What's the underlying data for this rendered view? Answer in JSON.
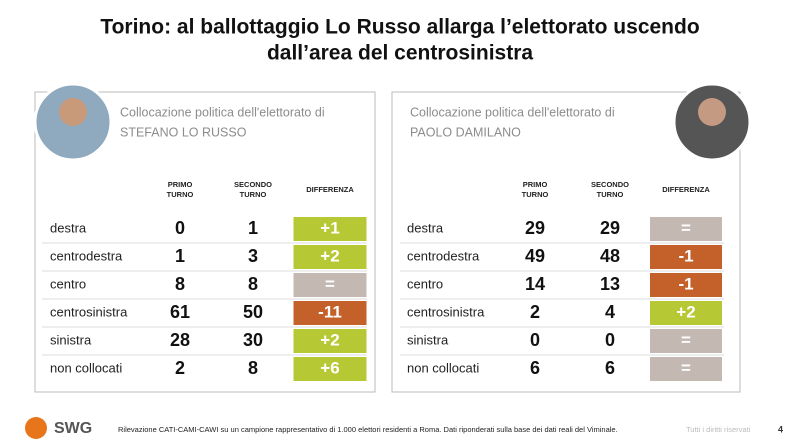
{
  "header": {
    "title_lines": [
      "Torino: al ballottaggio Lo Russo allarga l’elettorato uscendo",
      "dall’area del centrosinistra"
    ]
  },
  "tables": [
    {
      "caption_lines": [
        "Collocazione politica dell'elettorato di",
        "STEFANO LO RUSSO"
      ],
      "columns": [
        [
          "PRIMO",
          "TURNO"
        ],
        [
          "SECONDO",
          "TURNO"
        ],
        [
          "DIFFERENZA"
        ]
      ],
      "rows": [
        {
          "label": "destra",
          "primo": 0,
          "secondo": 1,
          "diff": "+1",
          "color": "#b6c934"
        },
        {
          "label": "centrodestra",
          "primo": 1,
          "secondo": 3,
          "diff": "+2",
          "color": "#b6c934"
        },
        {
          "label": "centro",
          "primo": 8,
          "secondo": 8,
          "diff": "=",
          "color": "#c3b8b2"
        },
        {
          "label": "centrosinistra",
          "primo": 61,
          "secondo": 50,
          "diff": "-11",
          "color": "#c4602a"
        },
        {
          "label": "sinistra",
          "primo": 28,
          "secondo": 30,
          "diff": "+2",
          "color": "#b6c934"
        },
        {
          "label": "non collocati",
          "primo": 2,
          "secondo": 8,
          "diff": "+6",
          "color": "#b6c934"
        }
      ]
    },
    {
      "caption_lines": [
        "Collocazione politica dell'elettorato di",
        "PAOLO DAMILANO"
      ],
      "columns": [
        [
          "PRIMO",
          "TURNO"
        ],
        [
          "SECONDO",
          "TURNO"
        ],
        [
          "DIFFERENZA"
        ]
      ],
      "rows": [
        {
          "label": "destra",
          "primo": 29,
          "secondo": 29,
          "diff": "=",
          "color": "#c3b8b2"
        },
        {
          "label": "centrodestra",
          "primo": 49,
          "secondo": 48,
          "diff": "-1",
          "color": "#c4602a"
        },
        {
          "label": "centro",
          "primo": 14,
          "secondo": 13,
          "diff": "-1",
          "color": "#c4602a"
        },
        {
          "label": "centrosinistra",
          "primo": 2,
          "secondo": 4,
          "diff": "+2",
          "color": "#b6c934"
        },
        {
          "label": "sinistra",
          "primo": 0,
          "secondo": 0,
          "diff": "=",
          "color": "#c3b8b2"
        },
        {
          "label": "non collocati",
          "primo": 6,
          "secondo": 6,
          "diff": "=",
          "color": "#c3b8b2"
        }
      ]
    }
  ],
  "footer": {
    "logo": "SWG",
    "note": "Rilevazione CATI-CAMI-CAWI su un campione rappresentativo di 1.000 elettori residenti a Roma. Dati riponderati sulla base dei dati reali del Viminale.",
    "rights": "Tutti i diritti riservati",
    "page": "4"
  }
}
